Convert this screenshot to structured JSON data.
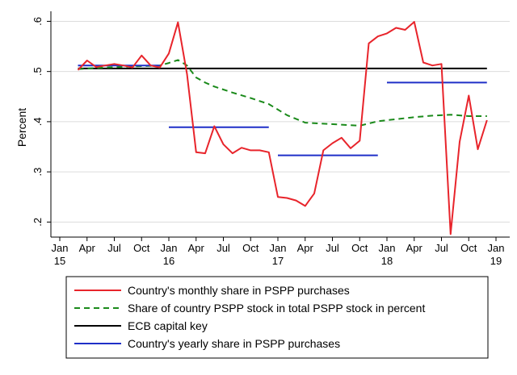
{
  "chart_data": {
    "type": "line",
    "title": "",
    "xlabel": "",
    "ylabel": "Percent",
    "x_unit": "month",
    "x_start": "2015-01",
    "xlim": [
      "2015-01",
      "2019-01"
    ],
    "ylim": [
      0.17,
      0.62
    ],
    "yticks": [
      {
        "value": 0.2,
        "label": ".2"
      },
      {
        "value": 0.3,
        "label": ".3"
      },
      {
        "value": 0.4,
        "label": ".4"
      },
      {
        "value": 0.5,
        "label": ".5"
      },
      {
        "value": 0.6,
        "label": ".6"
      }
    ],
    "xticks": [
      {
        "month": "2015-01",
        "label": "Jan",
        "sublabel": "15"
      },
      {
        "month": "2015-04",
        "label": "Apr",
        "sublabel": ""
      },
      {
        "month": "2015-07",
        "label": "Jul",
        "sublabel": ""
      },
      {
        "month": "2015-10",
        "label": "Oct",
        "sublabel": ""
      },
      {
        "month": "2016-01",
        "label": "Jan",
        "sublabel": "16"
      },
      {
        "month": "2016-04",
        "label": "Apr",
        "sublabel": ""
      },
      {
        "month": "2016-07",
        "label": "Jul",
        "sublabel": ""
      },
      {
        "month": "2016-10",
        "label": "Oct",
        "sublabel": ""
      },
      {
        "month": "2017-01",
        "label": "Jan",
        "sublabel": "17"
      },
      {
        "month": "2017-04",
        "label": "Apr",
        "sublabel": ""
      },
      {
        "month": "2017-07",
        "label": "Jul",
        "sublabel": ""
      },
      {
        "month": "2017-10",
        "label": "Oct",
        "sublabel": ""
      },
      {
        "month": "2018-01",
        "label": "Jan",
        "sublabel": "18"
      },
      {
        "month": "2018-04",
        "label": "Apr",
        "sublabel": ""
      },
      {
        "month": "2018-07",
        "label": "Jul",
        "sublabel": ""
      },
      {
        "month": "2018-10",
        "label": "Oct",
        "sublabel": ""
      },
      {
        "month": "2019-01",
        "label": "Jan",
        "sublabel": "19"
      }
    ],
    "grid": "horizontal",
    "legend_position": "bottom",
    "series": [
      {
        "name": "Country's monthly share in PSPP purchases",
        "color": "#e8242b",
        "style": "solid",
        "x": [
          "2015-03",
          "2015-04",
          "2015-05",
          "2015-06",
          "2015-07",
          "2015-08",
          "2015-09",
          "2015-10",
          "2015-11",
          "2015-12",
          "2016-01",
          "2016-02",
          "2016-03",
          "2016-04",
          "2016-05",
          "2016-06",
          "2016-07",
          "2016-08",
          "2016-09",
          "2016-10",
          "2016-11",
          "2016-12",
          "2017-01",
          "2017-02",
          "2017-03",
          "2017-04",
          "2017-05",
          "2017-06",
          "2017-07",
          "2017-08",
          "2017-09",
          "2017-10",
          "2017-11",
          "2017-12",
          "2018-01",
          "2018-02",
          "2018-03",
          "2018-04",
          "2018-05",
          "2018-06",
          "2018-07",
          "2018-08",
          "2018-09",
          "2018-10",
          "2018-11",
          "2018-12"
        ],
        "y": [
          0.503,
          0.522,
          0.509,
          0.512,
          0.515,
          0.512,
          0.508,
          0.532,
          0.512,
          0.508,
          0.536,
          0.598,
          0.495,
          0.339,
          0.337,
          0.391,
          0.355,
          0.337,
          0.348,
          0.343,
          0.343,
          0.339,
          0.25,
          0.248,
          0.243,
          0.232,
          0.257,
          0.343,
          0.357,
          0.368,
          0.347,
          0.362,
          0.556,
          0.57,
          0.576,
          0.587,
          0.583,
          0.599,
          0.518,
          0.512,
          0.515,
          0.176,
          0.36,
          0.452,
          0.345,
          0.403
        ]
      },
      {
        "name": "Share of country PSPP stock in total PSPP stock in percent",
        "color": "#1a8a1a",
        "style": "dashed",
        "x": [
          "2015-03",
          "2015-06",
          "2015-09",
          "2015-12",
          "2016-01",
          "2016-02",
          "2016-03",
          "2016-04",
          "2016-05",
          "2016-06",
          "2016-08",
          "2016-10",
          "2016-12",
          "2017-02",
          "2017-04",
          "2017-06",
          "2017-08",
          "2017-10",
          "2017-12",
          "2018-02",
          "2018-04",
          "2018-06",
          "2018-08",
          "2018-10",
          "2018-12"
        ],
        "y": [
          0.505,
          0.508,
          0.51,
          0.512,
          0.517,
          0.523,
          0.512,
          0.488,
          0.478,
          0.47,
          0.458,
          0.447,
          0.435,
          0.413,
          0.398,
          0.396,
          0.394,
          0.392,
          0.401,
          0.405,
          0.409,
          0.412,
          0.414,
          0.411,
          0.411
        ]
      },
      {
        "name": "ECB capital key",
        "color": "#000000",
        "style": "solid",
        "x": [
          "2015-03",
          "2018-12"
        ],
        "y": [
          0.506,
          0.506
        ]
      },
      {
        "name": "Country's yearly share in PSPP purchases",
        "color": "#1f2fc8",
        "style": "solid",
        "segments": [
          {
            "x": [
              "2015-03",
              "2015-12"
            ],
            "y": 0.512
          },
          {
            "x": [
              "2016-01",
              "2016-12"
            ],
            "y": 0.389
          },
          {
            "x": [
              "2017-01",
              "2017-12"
            ],
            "y": 0.333
          },
          {
            "x": [
              "2018-01",
              "2018-12"
            ],
            "y": 0.478
          }
        ]
      }
    ]
  }
}
